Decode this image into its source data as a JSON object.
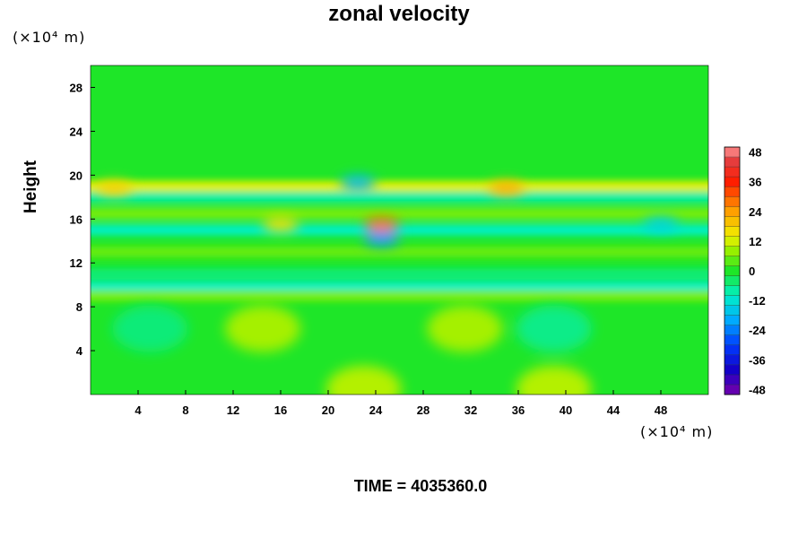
{
  "chart_data": {
    "type": "heatmap",
    "title": "zonal velocity",
    "xlabel": "",
    "ylabel": "Height",
    "x_unit": "(×10⁴ m)",
    "y_unit": "(×10⁴ m)",
    "xlim": [
      0,
      52
    ],
    "ylim": [
      0,
      30
    ],
    "x_ticks": [
      4,
      8,
      12,
      16,
      20,
      24,
      28,
      32,
      36,
      40,
      44,
      48
    ],
    "y_ticks": [
      4,
      8,
      12,
      16,
      20,
      24,
      28
    ],
    "colorbar": {
      "min": -50,
      "max": 50,
      "step": 4,
      "tick_labels": [
        48,
        36,
        24,
        12,
        0,
        -12,
        -24,
        -36,
        -48
      ]
    },
    "background_value": 0,
    "features": [
      {
        "type": "band",
        "y": 19.0,
        "value": 13
      },
      {
        "type": "band",
        "y": 18.0,
        "value": -8
      },
      {
        "type": "band",
        "y": 16.5,
        "value": 6
      },
      {
        "type": "band",
        "y": 15.0,
        "value": -10
      },
      {
        "type": "band",
        "y": 13.0,
        "value": 5
      },
      {
        "type": "band",
        "y": 11.0,
        "value": -5
      },
      {
        "type": "band",
        "y": 9.8,
        "value": -10
      },
      {
        "type": "band",
        "y": 9.0,
        "value": 6
      },
      {
        "type": "blob",
        "x": 24.5,
        "y": 15.5,
        "value": 28
      },
      {
        "type": "blob",
        "x": 24.5,
        "y": 14.2,
        "value": -22
      },
      {
        "type": "blob",
        "x": 35.0,
        "y": 18.8,
        "value": 22
      },
      {
        "type": "blob",
        "x": 2.0,
        "y": 18.8,
        "value": 18
      },
      {
        "type": "blob",
        "x": 16.0,
        "y": 15.5,
        "value": 16
      },
      {
        "type": "blob",
        "x": 22.5,
        "y": 19.3,
        "value": -18
      },
      {
        "type": "blob",
        "x": 48.0,
        "y": 15.5,
        "value": -14
      },
      {
        "type": "blob",
        "x": 14.5,
        "y": 6.0,
        "value": 9
      },
      {
        "type": "blob",
        "x": 31.5,
        "y": 6.0,
        "value": 9
      },
      {
        "type": "blob",
        "x": 39.0,
        "y": 6.0,
        "value": -6
      },
      {
        "type": "blob",
        "x": 5.0,
        "y": 6.0,
        "value": -5
      },
      {
        "type": "blob",
        "x": 23.0,
        "y": 0.5,
        "value": 10
      },
      {
        "type": "blob",
        "x": 39.0,
        "y": 0.5,
        "value": 10
      }
    ]
  },
  "footer": {
    "time_text": "TIME = 4035360.0"
  }
}
